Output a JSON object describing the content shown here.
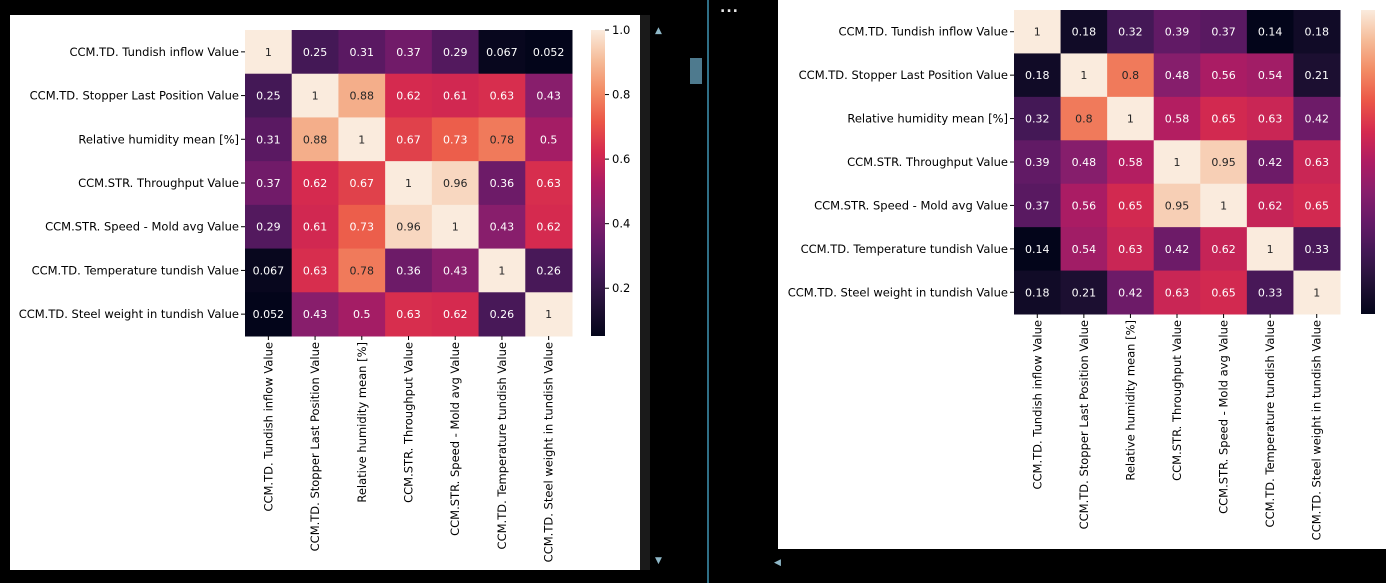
{
  "ui": {
    "more_label": "...",
    "scroll_up_glyph": "▲",
    "scroll_down_glyph": "▼",
    "scroll_left_glyph": "◀"
  },
  "chart_data": [
    {
      "type": "heatmap",
      "title": "",
      "colormap": "rocket",
      "rows": [
        "CCM.TD. Tundish inflow Value",
        "CCM.TD. Stopper Last Position Value",
        "Relative humidity mean [%]",
        "CCM.STR. Throughput Value",
        "CCM.STR. Speed - Mold avg Value",
        "CCM.TD. Temperature tundish Value",
        "CCM.TD. Steel weight in tundish Value"
      ],
      "columns": [
        "CCM.TD. Tundish inflow Value",
        "CCM.TD. Stopper Last Position Value",
        "Relative humidity mean [%]",
        "CCM.STR. Throughput Value",
        "CCM.STR. Speed - Mold avg Value",
        "CCM.TD. Temperature tundish Value",
        "CCM.TD. Steel weight in tundish Value"
      ],
      "values": [
        [
          1,
          0.25,
          0.31,
          0.37,
          0.29,
          0.067,
          0.052
        ],
        [
          0.25,
          1,
          0.88,
          0.62,
          0.61,
          0.63,
          0.43
        ],
        [
          0.31,
          0.88,
          1,
          0.67,
          0.73,
          0.78,
          0.5
        ],
        [
          0.37,
          0.62,
          0.67,
          1,
          0.96,
          0.36,
          0.63
        ],
        [
          0.29,
          0.61,
          0.73,
          0.96,
          1,
          0.43,
          0.62
        ],
        [
          0.067,
          0.63,
          0.78,
          0.36,
          0.43,
          1,
          0.26
        ],
        [
          0.052,
          0.43,
          0.5,
          0.63,
          0.62,
          0.26,
          1
        ]
      ],
      "vmin": 0.052,
      "vmax": 1,
      "colorbar_ticks": [
        0.2,
        0.4,
        0.6,
        0.8,
        1.0
      ],
      "colorbar_tick_labels": [
        "0.2",
        "0.4",
        "0.6",
        "0.8",
        "1.0"
      ]
    },
    {
      "type": "heatmap",
      "title": "",
      "colormap": "rocket",
      "rows": [
        "CCM.TD. Tundish inflow Value",
        "CCM.TD. Stopper Last Position Value",
        "Relative humidity mean [%]",
        "CCM.STR. Throughput Value",
        "CCM.STR. Speed - Mold avg Value",
        "CCM.TD. Temperature tundish Value",
        "CCM.TD. Steel weight in tundish Value"
      ],
      "columns": [
        "CCM.TD. Tundish inflow Value",
        "CCM.TD. Stopper Last Position Value",
        "Relative humidity mean [%]",
        "CCM.STR. Throughput Value",
        "CCM.STR. Speed - Mold avg Value",
        "CCM.TD. Temperature tundish Value",
        "CCM.TD. Steel weight in tundish Value"
      ],
      "values": [
        [
          1,
          0.18,
          0.32,
          0.39,
          0.37,
          0.14,
          0.18
        ],
        [
          0.18,
          1,
          0.8,
          0.48,
          0.56,
          0.54,
          0.21
        ],
        [
          0.32,
          0.8,
          1,
          0.58,
          0.65,
          0.63,
          0.42
        ],
        [
          0.39,
          0.48,
          0.58,
          1,
          0.95,
          0.42,
          0.63
        ],
        [
          0.37,
          0.56,
          0.65,
          0.95,
          1,
          0.62,
          0.65
        ],
        [
          0.14,
          0.54,
          0.63,
          0.42,
          0.62,
          1,
          0.33
        ],
        [
          0.18,
          0.21,
          0.42,
          0.63,
          0.65,
          0.33,
          1
        ]
      ],
      "vmin": 0.14,
      "vmax": 1,
      "colorbar_ticks": [],
      "colorbar_tick_labels": []
    }
  ]
}
